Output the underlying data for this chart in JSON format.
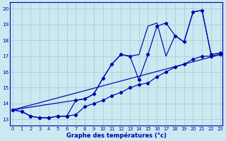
{
  "title": "Graphe des températures (°c)",
  "bg_color": "#cce8f0",
  "line_color": "#0000aa",
  "grid_color": "#a0c8d8",
  "xlim": [
    -0.3,
    23.3
  ],
  "ylim": [
    12.6,
    20.4
  ],
  "yticks": [
    13,
    14,
    15,
    16,
    17,
    18,
    19,
    20
  ],
  "xticks": [
    0,
    1,
    2,
    3,
    4,
    5,
    6,
    7,
    8,
    9,
    10,
    11,
    12,
    13,
    14,
    15,
    16,
    17,
    18,
    19,
    20,
    21,
    22,
    23
  ],
  "line1_smooth": {
    "x": [
      0,
      23
    ],
    "y": [
      13.6,
      17.1
    ]
  },
  "line2": {
    "x": [
      0,
      1,
      2,
      3,
      4,
      5,
      6,
      7,
      8,
      9,
      10,
      11,
      12,
      13,
      14,
      15,
      16,
      17,
      18,
      19,
      20,
      21,
      22,
      23
    ],
    "y": [
      13.6,
      13.5,
      13.2,
      13.1,
      13.1,
      13.2,
      13.2,
      13.3,
      13.8,
      14.0,
      14.2,
      14.5,
      14.7,
      15.0,
      15.2,
      15.3,
      15.7,
      16.0,
      16.3,
      16.5,
      16.8,
      17.0,
      17.0,
      17.1
    ]
  },
  "line3": {
    "x": [
      0,
      1,
      2,
      3,
      4,
      5,
      6,
      7,
      8,
      9,
      10,
      11,
      12,
      13,
      14,
      15,
      16,
      17,
      18,
      19,
      20,
      21,
      22,
      23
    ],
    "y": [
      13.6,
      13.5,
      13.2,
      13.1,
      13.1,
      13.2,
      13.2,
      14.2,
      14.3,
      14.6,
      15.6,
      16.5,
      17.1,
      17.0,
      15.5,
      17.1,
      18.9,
      19.1,
      18.3,
      17.9,
      19.8,
      19.9,
      17.1,
      17.2
    ]
  },
  "line4": {
    "x": [
      0,
      8,
      9,
      10,
      11,
      12,
      13,
      14,
      15,
      16,
      17,
      18,
      19,
      20,
      21,
      22,
      23
    ],
    "y": [
      13.6,
      14.3,
      14.6,
      15.6,
      16.5,
      17.1,
      17.0,
      17.1,
      18.9,
      19.1,
      17.0,
      18.3,
      17.9,
      19.8,
      19.9,
      17.1,
      17.2
    ]
  }
}
